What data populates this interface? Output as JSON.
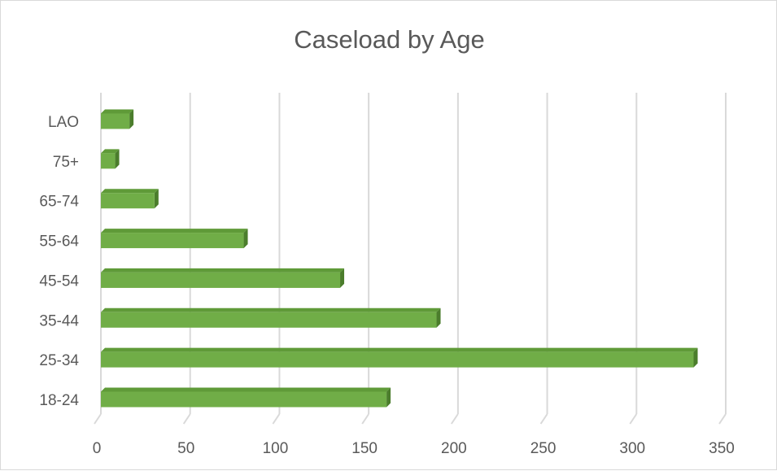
{
  "chart_data": {
    "type": "bar",
    "orientation": "horizontal",
    "style": "3d",
    "title": "Caseload by Age",
    "categories": [
      "18-24",
      "25-34",
      "35-44",
      "45-54",
      "55-64",
      "65-74",
      "75+",
      "LAO"
    ],
    "series": [
      {
        "values": [
          160,
          332,
          188,
          134,
          80,
          30,
          8,
          16
        ]
      }
    ],
    "xlim": [
      0,
      350
    ],
    "xticks": [
      0,
      50,
      100,
      150,
      200,
      250,
      300,
      350
    ],
    "xtick_labels": [
      "0",
      "50",
      "100",
      "150",
      "200",
      "250",
      "300",
      "350"
    ],
    "grid": "vertical",
    "legend": "none",
    "colors": {
      "bar_front": "#70ad47",
      "bar_top": "#5f9a38",
      "bar_side": "#4b7d2c",
      "grid": "#d9d9d9",
      "text": "#595959"
    }
  }
}
